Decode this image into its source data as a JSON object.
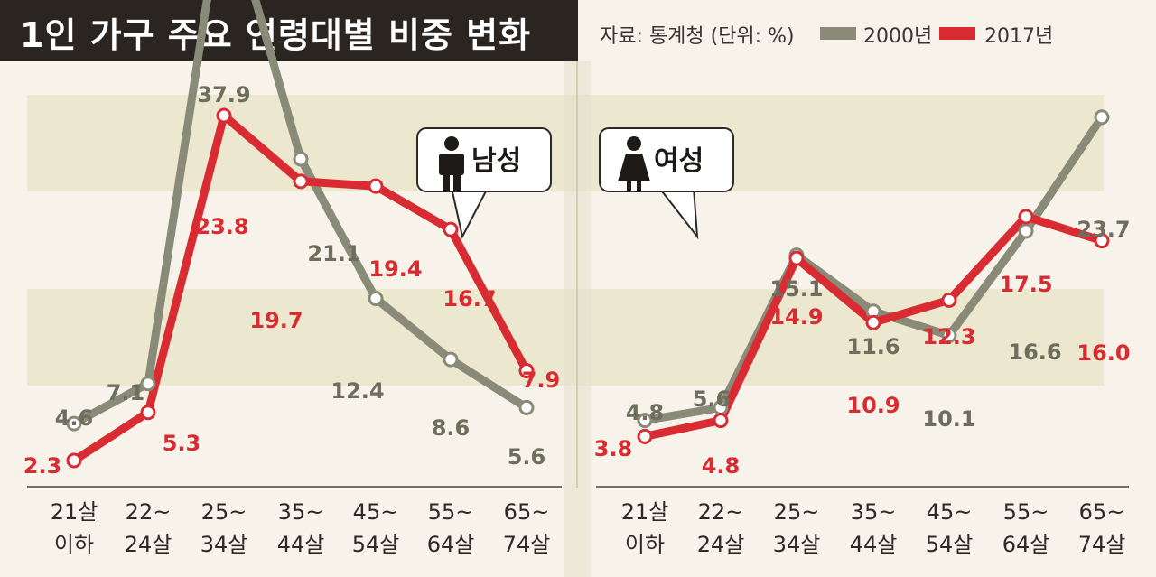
{
  "title": "1인 가구 주요 연령대별 비중 변화",
  "source": "자료: 통계청 (단위: %)",
  "legend": [
    {
      "label": "2000년",
      "color": "#8a8a78"
    },
    {
      "label": "2017년",
      "color": "#d82b32"
    }
  ],
  "colors": {
    "band": "#ece7cf",
    "bg": "#f7f3ea",
    "gray": "#8a8a78",
    "red": "#d82b32"
  },
  "chart_data": [
    {
      "type": "line",
      "title": "남성",
      "icon": "man-icon",
      "categories": [
        "21살 이하",
        "22~ 24살",
        "25~ 34살",
        "35~ 44살",
        "45~ 54살",
        "55~ 64살",
        "65~ 74살"
      ],
      "series": [
        {
          "name": "2000년",
          "values": [
            4.6,
            7.1,
            37.9,
            21.1,
            12.4,
            8.6,
            5.6
          ]
        },
        {
          "name": "2017년",
          "values": [
            2.3,
            5.3,
            23.8,
            19.7,
            19.4,
            16.7,
            7.9
          ]
        }
      ],
      "ylim": [
        -1.6,
        42.2
      ]
    },
    {
      "type": "line",
      "title": "여성",
      "icon": "woman-icon",
      "categories": [
        "21살 이하",
        "22~ 24살",
        "25~ 34살",
        "35~ 44살",
        "45~ 54살",
        "55~ 64살",
        "65~ 74살"
      ],
      "series": [
        {
          "name": "2000년",
          "values": [
            4.8,
            5.6,
            15.1,
            11.6,
            10.1,
            16.6,
            23.7
          ]
        },
        {
          "name": "2017년",
          "values": [
            3.8,
            4.8,
            14.9,
            10.9,
            12.3,
            17.5,
            16.0
          ]
        }
      ],
      "ylim": [
        -1.6,
        42.2
      ]
    }
  ]
}
